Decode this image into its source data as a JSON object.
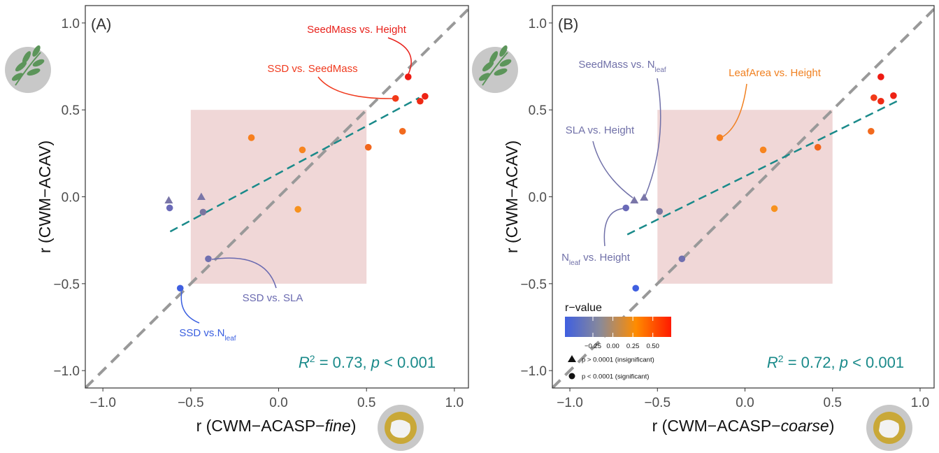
{
  "chart_data": [
    {
      "type": "scatter",
      "panel_label": "(A)",
      "x_label": [
        "r (CWM−ACASP−",
        "fine",
        ")"
      ],
      "y_label": "r (CWM−ACAV)",
      "xlim": [
        -1.1,
        1.08
      ],
      "ylim": [
        -1.1,
        1.1
      ],
      "xticks": [
        {
          "value": -1,
          "label": "−1.0"
        },
        {
          "value": -0.5,
          "label": "−0.5"
        },
        {
          "value": 0,
          "label": "0.0"
        },
        {
          "value": 0.5,
          "label": "0.5"
        },
        {
          "value": 1,
          "label": "1.0"
        }
      ],
      "yticks": [
        {
          "value": -1,
          "label": "−1.0"
        },
        {
          "value": -0.5,
          "label": "−0.5"
        },
        {
          "value": 0,
          "label": "0.0"
        },
        {
          "value": 0.5,
          "label": "0.5"
        },
        {
          "value": 1,
          "label": "1.0"
        }
      ],
      "identity_line": true,
      "box": {
        "x": [
          -0.5,
          0.5
        ],
        "y": [
          -0.5,
          0.5
        ]
      },
      "x": [
        -0.625,
        -0.44,
        -0.62,
        -0.43,
        -0.4,
        -0.56,
        -0.155,
        0.135,
        0.11,
        0.51,
        0.705,
        0.665,
        0.737,
        0.805,
        0.833
      ],
      "y": [
        -0.02,
        0.0,
        -0.064,
        -0.088,
        -0.357,
        -0.526,
        0.34,
        0.27,
        -0.072,
        0.285,
        0.377,
        0.566,
        0.69,
        0.55,
        0.578
      ],
      "shapes": [
        "triangle",
        "triangle",
        "circle",
        "circle",
        "circle",
        "circle",
        "circle",
        "circle",
        "circle",
        "circle",
        "circle",
        "circle",
        "circle",
        "circle",
        "circle"
      ],
      "colors": [
        "#7a76a8",
        "#7a76a8",
        "#6a6ab8",
        "#7a76a0",
        "#7070b0",
        "#3f5fe0",
        "#f77f1e",
        "#f78520",
        "#f7921e",
        "#f2661c",
        "#f26a1e",
        "#f23a18",
        "#ee1a12",
        "#ee2a14",
        "#ee2214"
      ],
      "fit": {
        "x": [
          -0.617,
          0.8
        ],
        "y": [
          -0.2,
          0.57
        ],
        "color": "#1a8a8a"
      },
      "stats": [
        "R",
        "2",
        " = 0.73, ",
        "p",
        " < 0.001"
      ],
      "annotations": [
        {
          "text": [
            "SeedMass vs. Height"
          ],
          "color": "#e8201a"
        },
        {
          "text": [
            "SSD vs. SeedMass"
          ],
          "color": "#f03a1e"
        },
        {
          "text": [
            "SSD vs. SLA"
          ],
          "color": "#6a6ab0"
        },
        {
          "text": [
            "SSD vs.N",
            "leaf"
          ],
          "color": "#3a5fe0"
        }
      ]
    },
    {
      "type": "scatter",
      "panel_label": "(B)",
      "x_label": [
        "r (CWM−ACASP−",
        "coarse",
        ")"
      ],
      "y_label": "r (CWM−ACAV)",
      "xlim": [
        -1.1,
        1.08
      ],
      "ylim": [
        -1.1,
        1.1
      ],
      "xticks": [
        {
          "value": -1,
          "label": "−1.0"
        },
        {
          "value": -0.5,
          "label": "−0.5"
        },
        {
          "value": 0,
          "label": "0.0"
        },
        {
          "value": 0.5,
          "label": "0.5"
        },
        {
          "value": 1,
          "label": "1.0"
        }
      ],
      "yticks": [
        {
          "value": -1,
          "label": "−1.0"
        },
        {
          "value": -0.5,
          "label": "−0.5"
        },
        {
          "value": 0,
          "label": "0.0"
        },
        {
          "value": 0.5,
          "label": "0.5"
        },
        {
          "value": 1,
          "label": "1.0"
        }
      ],
      "identity_line": true,
      "box": {
        "x": [
          -0.5,
          0.5
        ],
        "y": [
          -0.5,
          0.5
        ]
      },
      "x": [
        -0.632,
        -0.576,
        -0.68,
        -0.488,
        -0.36,
        -0.624,
        -0.144,
        0.104,
        0.168,
        0.416,
        0.72,
        0.736,
        0.776,
        0.776,
        0.848
      ],
      "y": [
        -0.02,
        -0.004,
        -0.064,
        -0.084,
        -0.357,
        -0.526,
        0.34,
        0.27,
        -0.068,
        0.285,
        0.377,
        0.57,
        0.69,
        0.55,
        0.582
      ],
      "shapes": [
        "triangle",
        "triangle",
        "circle",
        "circle",
        "circle",
        "circle",
        "circle",
        "circle",
        "circle",
        "circle",
        "circle",
        "circle",
        "circle",
        "circle",
        "circle"
      ],
      "colors": [
        "#7a76a8",
        "#7a76a8",
        "#6a6ab8",
        "#7a76a0",
        "#7070b0",
        "#3f5fe0",
        "#f77f1e",
        "#f78520",
        "#f7921e",
        "#f2661c",
        "#f26a1e",
        "#f23a18",
        "#ee1a12",
        "#ee2a14",
        "#ee2214"
      ],
      "fit": {
        "x": [
          -0.672,
          0.868
        ],
        "y": [
          -0.217,
          0.55
        ],
        "color": "#1a8a8a"
      },
      "stats": [
        "R",
        "2",
        " = 0.72, ",
        "p",
        " < 0.001"
      ],
      "annotations": [
        {
          "text": [
            "SeedMass vs. N",
            "leaf"
          ],
          "color": "#7070a8"
        },
        {
          "text": [
            "LeafArea vs. Height"
          ],
          "color": "#f08020"
        },
        {
          "text": [
            "SLA vs. Height"
          ],
          "color": "#7070a8"
        },
        {
          "text": [
            "N",
            "leaf",
            " vs. Height"
          ],
          "color": "#7070a8"
        }
      ],
      "legend": {
        "title": "r−value",
        "lim": [
          -0.6,
          0.73
        ],
        "colors": [
          "#3f5fe0",
          "#8a8a98",
          "#ff8c00",
          "#ff1a00"
        ],
        "ticks": [
          {
            "value": -0.25,
            "label": "−0.25"
          },
          {
            "value": 0,
            "label": "0.00"
          },
          {
            "value": 0.25,
            "label": "0.25"
          },
          {
            "value": 0.5,
            "label": "0.50"
          }
        ],
        "shapes": [
          {
            "shape": "triangle",
            "label": "p > 0.0001 (insignificant)"
          },
          {
            "shape": "circle",
            "label": "p < 0.0001 (significant)"
          }
        ]
      }
    }
  ]
}
